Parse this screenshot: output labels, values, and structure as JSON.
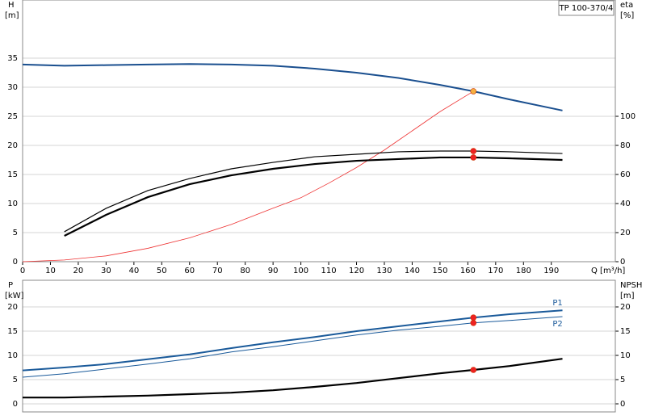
{
  "chart_data": [
    {
      "type": "line",
      "title": "TP 100-370/4",
      "ylabel": "H",
      "yunit": "[m]",
      "y2label": "eta",
      "y2unit": "[%]",
      "xlabel": "Q [m³/h]",
      "xlim": [
        0,
        213
      ],
      "xticks": [
        0,
        10,
        20,
        30,
        40,
        50,
        60,
        70,
        80,
        90,
        100,
        110,
        120,
        130,
        140,
        150,
        160,
        170,
        180,
        190
      ],
      "ylim": [
        0,
        45
      ],
      "yticks": [
        0,
        5,
        10,
        15,
        20,
        25,
        30,
        35
      ],
      "y2lim": [
        0,
        180
      ],
      "y2ticks": [
        0,
        20,
        40,
        60,
        80,
        100
      ],
      "grid": true,
      "series": [
        {
          "color": "#1a4f8f",
          "line_width": 2,
          "axis": "y",
          "x": [
            0,
            15,
            30,
            45,
            60,
            75,
            90,
            105,
            120,
            135,
            150,
            162,
            175,
            194
          ],
          "values": [
            33.9,
            33.7,
            33.8,
            33.9,
            34.0,
            33.9,
            33.7,
            33.2,
            32.5,
            31.6,
            30.4,
            29.3,
            27.9,
            26.0
          ]
        },
        {
          "color": "#ee3333",
          "line_width": 0.8,
          "axis": "y",
          "x": [
            0,
            15,
            30,
            45,
            60,
            75,
            90,
            100,
            110,
            120,
            130,
            140,
            150,
            162
          ],
          "values": [
            0,
            0.3,
            1.0,
            2.3,
            4.1,
            6.4,
            9.2,
            11.0,
            13.5,
            16.2,
            19.2,
            22.5,
            25.8,
            29.3
          ]
        },
        {
          "color": "#000000",
          "line_width": 1.2,
          "axis": "y2",
          "x": [
            15,
            30,
            45,
            60,
            75,
            90,
            105,
            120,
            135,
            150,
            162,
            175,
            194
          ],
          "values": [
            20.6,
            36.7,
            48.9,
            57.2,
            63.9,
            68.3,
            72.2,
            73.9,
            75.6,
            76.1,
            76.1,
            75.6,
            74.4
          ]
        },
        {
          "color": "#000000",
          "line_width": 2.2,
          "axis": "y2",
          "x": [
            15,
            30,
            45,
            60,
            75,
            90,
            105,
            120,
            135,
            150,
            162,
            175,
            194
          ],
          "values": [
            17.8,
            32.2,
            44.4,
            53.3,
            59.4,
            63.9,
            67.2,
            69.4,
            70.6,
            71.7,
            71.7,
            71.1,
            70.0
          ]
        }
      ],
      "markers": [
        {
          "x": 162,
          "y": 29.3,
          "axis": "y",
          "color": "#f5b041"
        },
        {
          "x": 162,
          "y": 76.1,
          "axis": "y2",
          "color": "#ee2222"
        },
        {
          "x": 162,
          "y": 71.7,
          "axis": "y2",
          "color": "#ee2222"
        }
      ]
    },
    {
      "type": "line",
      "ylabel": "P",
      "yunit": "[kW]",
      "y2label": "NPSH",
      "y2unit": "[m]",
      "xlim": [
        0,
        213
      ],
      "ylim": [
        0,
        25.5
      ],
      "yticks": [
        0,
        5,
        10,
        15,
        20
      ],
      "y2lim": [
        0,
        25.5
      ],
      "y2ticks": [
        0,
        5,
        10,
        15,
        20
      ],
      "grid": true,
      "series": [
        {
          "name": "P1",
          "color": "#1a5a9a",
          "line_width": 2,
          "axis": "y",
          "x": [
            0,
            15,
            30,
            45,
            60,
            75,
            90,
            105,
            120,
            135,
            150,
            162,
            175,
            194
          ],
          "values": [
            6.9,
            7.5,
            8.2,
            9.2,
            10.2,
            11.5,
            12.7,
            13.8,
            15.0,
            16.0,
            17.0,
            17.8,
            18.5,
            19.3
          ]
        },
        {
          "name": "P2",
          "color": "#1a5a9a",
          "line_width": 1,
          "axis": "y",
          "x": [
            0,
            15,
            30,
            45,
            60,
            75,
            90,
            105,
            120,
            135,
            150,
            162,
            175,
            194
          ],
          "values": [
            5.5,
            6.2,
            7.2,
            8.2,
            9.3,
            10.7,
            11.8,
            13.0,
            14.2,
            15.2,
            16.0,
            16.7,
            17.2,
            18.0
          ]
        },
        {
          "color": "#000000",
          "line_width": 2.2,
          "axis": "y2",
          "x": [
            0,
            15,
            30,
            45,
            60,
            75,
            90,
            105,
            120,
            135,
            150,
            162,
            175,
            194
          ],
          "values": [
            1.3,
            1.3,
            1.5,
            1.7,
            2.0,
            2.3,
            2.8,
            3.5,
            4.3,
            5.3,
            6.3,
            7.0,
            7.8,
            9.3
          ]
        }
      ],
      "markers": [
        {
          "x": 162,
          "y": 17.8,
          "axis": "y",
          "color": "#ee2222"
        },
        {
          "x": 162,
          "y": 16.7,
          "axis": "y",
          "color": "#ee2222"
        },
        {
          "x": 162,
          "y": 7.0,
          "axis": "y2",
          "color": "#ee2222"
        }
      ]
    }
  ]
}
